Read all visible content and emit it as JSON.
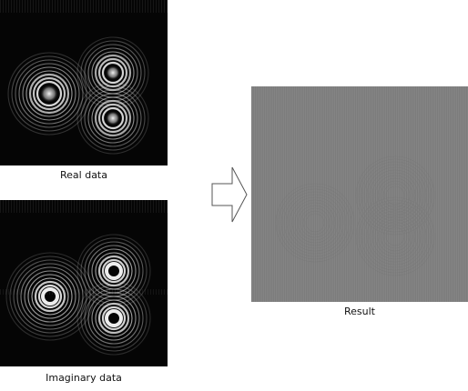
{
  "labels": {
    "real": "Real data",
    "imaginary": "Imaginary data",
    "result": "Result"
  },
  "colors": {
    "panel_background": "#050505",
    "ring": "#e6e6e6",
    "result_gray": "#808080",
    "arrow_stroke": "#555555"
  },
  "icons": {
    "arrow": "right-arrow-icon"
  }
}
